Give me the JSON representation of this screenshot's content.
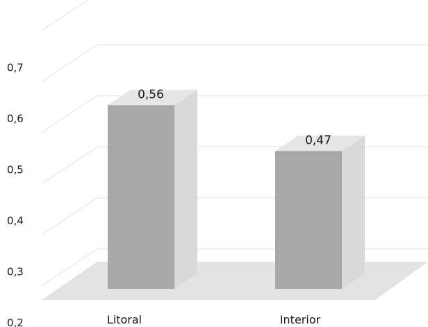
{
  "chart_data": {
    "type": "bar",
    "style": "3d-column",
    "categories": [
      "Litoral",
      "Interior"
    ],
    "values": [
      0.56,
      0.47
    ],
    "data_labels": [
      "0,56",
      "0,47"
    ],
    "y_ticks": [
      {
        "value": 0.2,
        "label": "0,2"
      },
      {
        "value": 0.3,
        "label": "0,3"
      },
      {
        "value": 0.4,
        "label": "0,4"
      },
      {
        "value": 0.5,
        "label": "0,5"
      },
      {
        "value": 0.6,
        "label": "0,6"
      },
      {
        "value": 0.7,
        "label": "0,7"
      }
    ],
    "ylim": [
      0.2,
      0.8
    ],
    "title": "",
    "xlabel": "",
    "ylabel": "",
    "grid": true,
    "legend": "none",
    "colors": {
      "bar_front": "#a8a8a8",
      "bar_side": "#d9d9d9",
      "bar_top": "#e6e6e6",
      "floor": "#e3e3e3",
      "grid": "#e6e6e6"
    }
  }
}
